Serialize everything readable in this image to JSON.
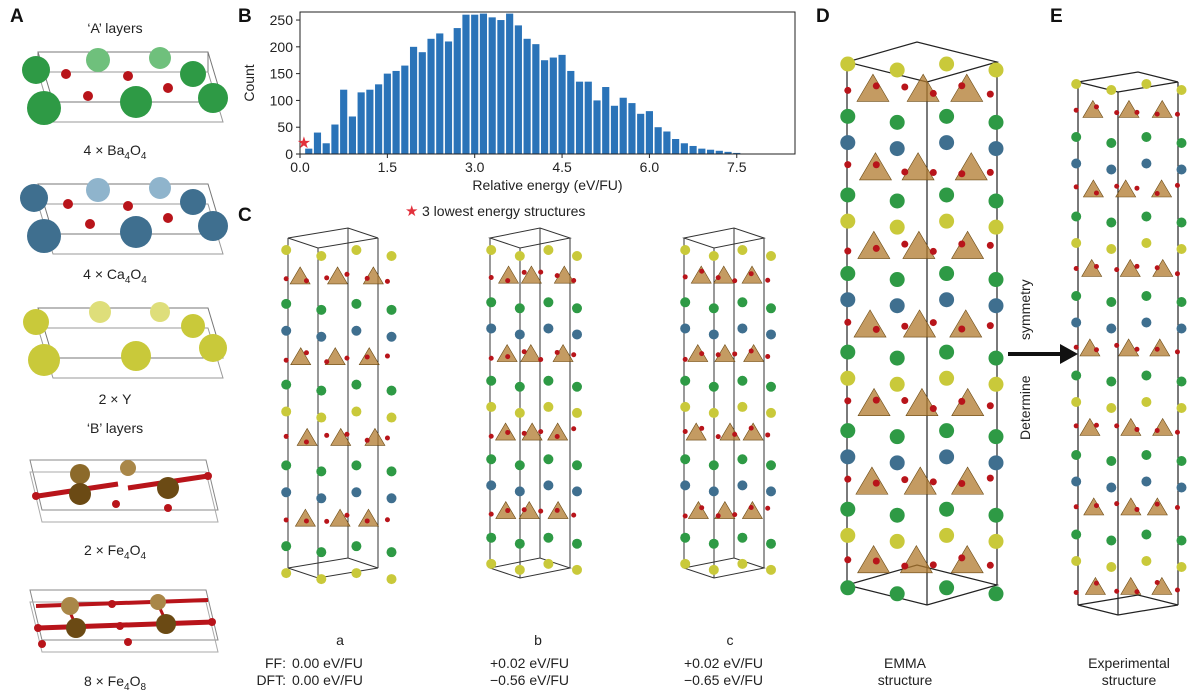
{
  "panels": {
    "A": "A",
    "B": "B",
    "C": "C",
    "D": "D",
    "E": "E"
  },
  "panel_a": {
    "a_layers_title": "‘A’ layers",
    "b_layers_title": "‘B’ layers",
    "captions": [
      {
        "prefix": "4 × Ba",
        "s1": "4",
        "mid": "O",
        "s2": "4"
      },
      {
        "prefix": "4 × Ca",
        "s1": "4",
        "mid": "O",
        "s2": "4"
      },
      {
        "prefix": "2 × Y",
        "s1": "",
        "mid": "",
        "s2": ""
      },
      {
        "prefix": "2 × Fe",
        "s1": "4",
        "mid": "O",
        "s2": "4"
      },
      {
        "prefix": "8 × Fe",
        "s1": "4",
        "mid": "O",
        "s2": "8"
      }
    ],
    "colors": {
      "ba": "#2e9a45",
      "ca": "#3f6f8f",
      "y": "#c9c93a",
      "fe": "#6b4a14",
      "o": "#b8141a"
    }
  },
  "chart_data": {
    "type": "bar",
    "xlabel": "Relative energy (eV/FU)",
    "ylabel": "Count",
    "xlim": [
      0,
      8.5
    ],
    "ylim": [
      0,
      265
    ],
    "xticks": [
      "0.0",
      "1.5",
      "3.0",
      "4.5",
      "6.0",
      "7.5"
    ],
    "yticks": [
      "0",
      "50",
      "100",
      "150",
      "200",
      "250"
    ],
    "bin_width": 0.15,
    "x": [
      0.15,
      0.3,
      0.45,
      0.6,
      0.75,
      0.9,
      1.05,
      1.2,
      1.35,
      1.5,
      1.65,
      1.8,
      1.95,
      2.1,
      2.25,
      2.4,
      2.55,
      2.7,
      2.85,
      3.0,
      3.15,
      3.3,
      3.45,
      3.6,
      3.75,
      3.9,
      4.05,
      4.2,
      4.35,
      4.5,
      4.65,
      4.8,
      4.95,
      5.1,
      5.25,
      5.4,
      5.55,
      5.7,
      5.85,
      6.0,
      6.15,
      6.3,
      6.45,
      6.6,
      6.75,
      6.9,
      7.05,
      7.2,
      7.35,
      7.5
    ],
    "values": [
      10,
      40,
      20,
      55,
      120,
      70,
      115,
      120,
      130,
      150,
      155,
      165,
      200,
      190,
      215,
      225,
      210,
      235,
      260,
      260,
      262,
      255,
      250,
      262,
      240,
      215,
      205,
      175,
      180,
      185,
      155,
      135,
      135,
      100,
      125,
      90,
      105,
      95,
      75,
      80,
      50,
      42,
      28,
      20,
      15,
      10,
      8,
      6,
      4,
      2
    ],
    "marker": {
      "x": 0.05,
      "y": 22,
      "symbol": "★",
      "color": "#e2313c"
    },
    "bar_color": "#2a73b8",
    "legend": "3 lowest energy structures"
  },
  "panel_c": {
    "structures": [
      {
        "letter": "a",
        "ff": "0.00 eV/FU",
        "dft": "0.00 eV/FU"
      },
      {
        "letter": "b",
        "ff": "+0.02 eV/FU",
        "dft": "−0.56 eV/FU"
      },
      {
        "letter": "c",
        "ff": "+0.02 eV/FU",
        "dft": "−0.65 eV/FU"
      }
    ],
    "ff_label": "FF:",
    "dft_label": "DFT:"
  },
  "panel_d": {
    "line1": "EMMA",
    "line2": "structure"
  },
  "panel_e": {
    "line1": "Experimental",
    "line2": "structure"
  },
  "arrow": {
    "line1": "Determine",
    "line2": "symmetry"
  }
}
